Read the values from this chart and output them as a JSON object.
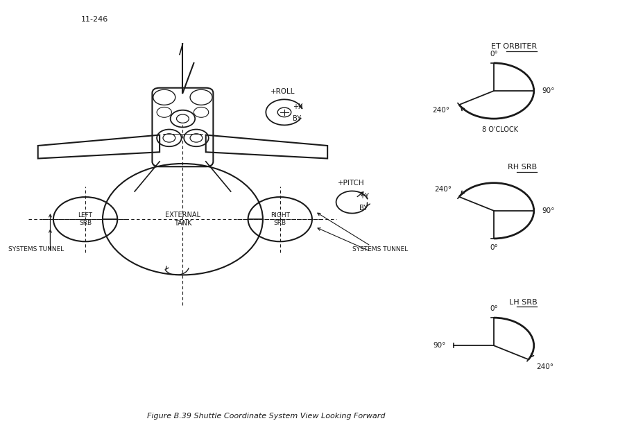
{
  "title": "Figure B.39 Shuttle Coordinate System View Looking Forward",
  "ref_number": "11-246",
  "background_color": "#ffffff",
  "line_color": "#1a1a1a",
  "et_orbiter_label": "ET ORBITER",
  "et_orbiter_sublabel": "8 O'CLOCK",
  "rh_srb_label": "RH SRB",
  "lh_srb_label": "LH SRB",
  "left_srb_label": "LEFT\nSRB",
  "right_srb_label": "RIGHT\nSRB",
  "external_tank_label": "EXTERNAL\nTANK",
  "systems_tunnel_label": "SYSTEMS TUNNEL",
  "roll_label": "+ROLL",
  "pitch_label": "+PITCH",
  "roll_x_label": "+X",
  "roll_by_label": "BY",
  "pitch_y_label": "+Y",
  "pitch_by_label": "BY"
}
